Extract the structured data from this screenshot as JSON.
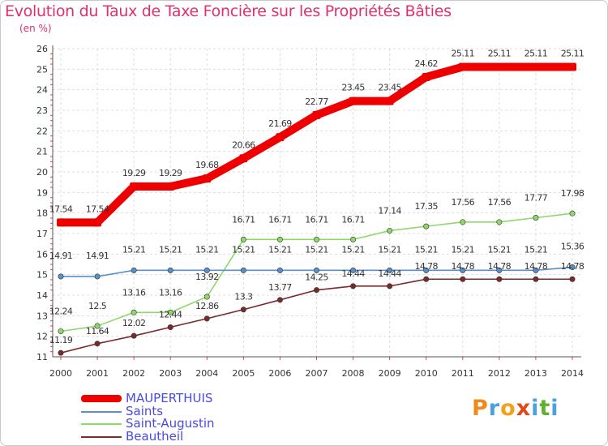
{
  "title": "Evolution du Taux de Taxe Foncière sur les Propriétés Bâties",
  "subtitle": "(en %)",
  "logo": {
    "letters": [
      "P",
      "r",
      "o",
      "x",
      "i",
      "t",
      "i"
    ],
    "colors": [
      "#f08a1a",
      "#4aa0e0",
      "#f0a21a",
      "#e04a1a",
      "#4aa0e0",
      "#60b030",
      "#4aa0e0"
    ]
  },
  "chart_data": {
    "type": "line",
    "title": "Evolution du Taux de Taxe Foncière sur les Propriétés Bâties",
    "ylabel": "(en %)",
    "xlabel": "",
    "x": [
      "2000",
      "2001",
      "2002",
      "2003",
      "2004",
      "2005",
      "2006",
      "2007",
      "2008",
      "2009",
      "2010",
      "2011",
      "2012",
      "2013",
      "2014"
    ],
    "ylim": [
      11,
      26
    ],
    "yticks": [
      "11",
      "12",
      "13",
      "14",
      "15",
      "16",
      "17",
      "18",
      "19",
      "20",
      "21",
      "22",
      "23",
      "24",
      "25",
      "26"
    ],
    "grid": true,
    "series": [
      {
        "name": "MAUPERTHUIS",
        "color": "#ee0000",
        "emphasis": true,
        "values": [
          17.54,
          17.54,
          19.29,
          19.29,
          19.68,
          20.66,
          21.69,
          22.77,
          23.45,
          23.45,
          24.62,
          25.11,
          25.11,
          25.11,
          25.11
        ],
        "labels": [
          "17.54",
          "17.54",
          "19.29",
          "19.29",
          "19.68",
          "20.66",
          "21.69",
          "22.77",
          "23.45",
          "23.45",
          "24.62",
          "25.11",
          "25.11",
          "25.11",
          "25.11"
        ]
      },
      {
        "name": "Saints",
        "color": "#5a8fc8",
        "emphasis": false,
        "values": [
          14.91,
          14.91,
          15.21,
          15.21,
          15.21,
          15.21,
          15.21,
          15.21,
          15.21,
          15.21,
          15.21,
          15.21,
          15.21,
          15.21,
          15.36
        ],
        "labels": [
          "14.91",
          "14.91",
          "15.21",
          "15.21",
          "15.21",
          "15.21",
          "15.21",
          "15.21",
          "15.21",
          "15.21",
          "15.21",
          "15.21",
          "15.21",
          "15.21",
          "15.36"
        ]
      },
      {
        "name": "Saint-Augustin",
        "color": "#8ed86a",
        "emphasis": false,
        "values": [
          12.24,
          12.5,
          13.16,
          13.16,
          13.92,
          16.71,
          16.71,
          16.71,
          16.71,
          17.14,
          17.35,
          17.56,
          17.56,
          17.77,
          17.98
        ],
        "labels": [
          "12.24",
          "12.5",
          "13.16",
          "13.16",
          "13.92",
          "16.71",
          "16.71",
          "16.71",
          "16.71",
          "17.14",
          "17.35",
          "17.56",
          "17.56",
          "17.77",
          "17.98"
        ]
      },
      {
        "name": "Beautheil",
        "color": "#7a2a2a",
        "emphasis": false,
        "values": [
          11.19,
          11.64,
          12.02,
          12.44,
          12.86,
          13.3,
          13.77,
          14.25,
          14.44,
          14.44,
          14.78,
          14.78,
          14.78,
          14.78,
          14.78
        ],
        "labels": [
          "11.19",
          "11.64",
          "12.02",
          "12.44",
          "12.86",
          "13.3",
          "13.77",
          "14.25",
          "14.44",
          "14.44",
          "14.78",
          "14.78",
          "14.78",
          "14.78",
          "14.78"
        ]
      }
    ],
    "legend": {
      "position": "bottom-left",
      "entries": [
        "MAUPERTHUIS",
        "Saints",
        "Saint-Augustin",
        "Beautheil"
      ]
    }
  }
}
